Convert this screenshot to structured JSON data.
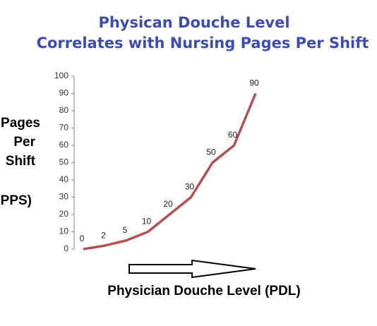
{
  "chart_data": {
    "type": "line",
    "title_lines": [
      "Physican Douche Level",
      "Correlates with Nursing Pages Per Shift"
    ],
    "y_label_lines": [
      "Pages",
      "Per",
      "Shift",
      "PPS)"
    ],
    "x_label": "Physician Douche Level (PDL)",
    "categories": [
      null,
      null,
      null,
      null,
      null,
      null,
      null,
      null,
      null
    ],
    "series": [
      {
        "name": null,
        "color": "#b5504c",
        "values": [
          0,
          2,
          5,
          10,
          20,
          30,
          50,
          60,
          90
        ]
      }
    ],
    "ylim": [
      0,
      100
    ],
    "yticks": [
      0,
      10,
      20,
      30,
      40,
      50,
      60,
      70,
      80,
      90,
      100
    ],
    "grid": false
  }
}
